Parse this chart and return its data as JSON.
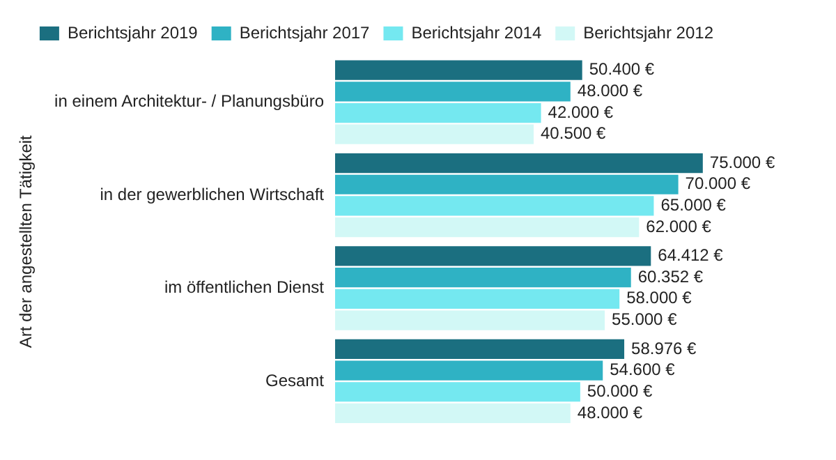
{
  "chart_data": {
    "type": "bar",
    "orientation": "horizontal",
    "ylabel": "Art der angestellten Tätigkeit",
    "categories": [
      "in einem Architektur- / Planungsbüro",
      "in der gewerblichen Wirtschaft",
      "im öffentlichen Dienst",
      "Gesamt"
    ],
    "series": [
      {
        "name": "Berichtsjahr 2019",
        "color": "#1b6f80",
        "values": [
          50400,
          75000,
          64412,
          58976
        ],
        "value_labels": [
          "50.400 €",
          "75.000 €",
          "64.412 €",
          "58.976 €"
        ]
      },
      {
        "name": "Berichtsjahr 2017",
        "color": "#2fb2c4",
        "values": [
          48000,
          70000,
          60352,
          54600
        ],
        "value_labels": [
          "48.000 €",
          "70.000 €",
          "60.352 €",
          "54.600 €"
        ]
      },
      {
        "name": "Berichtsjahr 2014",
        "color": "#74e8f0",
        "values": [
          42000,
          65000,
          58000,
          50000
        ],
        "value_labels": [
          "42.000 €",
          "65.000 €",
          "58.000 €",
          "50.000 €"
        ]
      },
      {
        "name": "Berichtsjahr 2012",
        "color": "#d2f8f6",
        "values": [
          40500,
          62000,
          55000,
          48000
        ],
        "value_labels": [
          "40.500 €",
          "62.000 €",
          "55.000 €",
          "48.000 €"
        ]
      }
    ],
    "legend": "top",
    "grid": false,
    "tick_labels": "y"
  }
}
